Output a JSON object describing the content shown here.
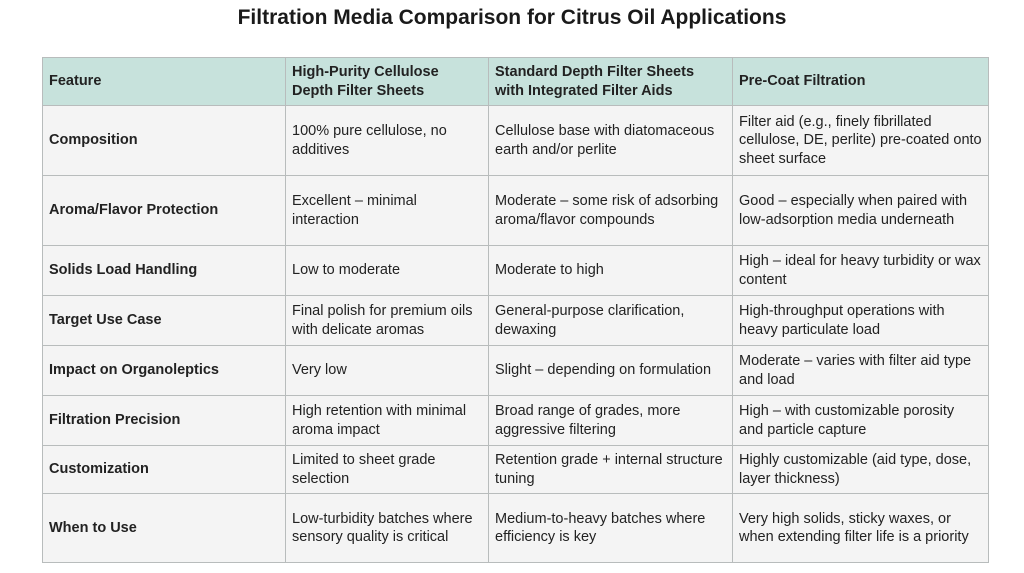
{
  "title": "Filtration Media Comparison for Citrus Oil Applications",
  "table": {
    "header": [
      "Feature",
      "High-Purity Cellulose Depth Filter Sheets",
      "Standard Depth Filter Sheets with Integrated Filter Aids",
      "Pre-Coat Filtration"
    ],
    "rows": [
      [
        "Composition",
        "100% pure cellulose, no additives",
        "Cellulose base with diatomaceous earth and/or perlite",
        "Filter aid (e.g., finely fibrillated cellulose, DE, perlite) pre-coated onto sheet surface"
      ],
      [
        "Aroma/Flavor Protection",
        "Excellent – minimal interaction",
        "Moderate – some risk of adsorbing aroma/flavor compounds",
        "Good – especially when paired with low-adsorption media underneath"
      ],
      [
        "Solids Load Handling",
        "Low to moderate",
        "Moderate to high",
        "High – ideal for heavy turbidity or wax content"
      ],
      [
        "Target Use Case",
        "Final polish for premium oils with delicate aromas",
        "General-purpose clarification, dewaxing",
        "High-throughput operations with heavy particulate load"
      ],
      [
        "Impact on Organoleptics",
        "Very low",
        "Slight – depending on formulation",
        "Moderate – varies with filter aid type and load"
      ],
      [
        "Filtration Precision",
        "High retention with minimal aroma impact",
        "Broad range of grades, more aggressive filtering",
        "High – with customizable porosity and particle capture"
      ],
      [
        "Customization",
        "Limited to sheet grade selection",
        "Retention grade + internal structure tuning",
        "Highly customizable (aid type, dose, layer thickness)"
      ],
      [
        "When to Use",
        "Low-turbidity batches where sensory quality is critical",
        "Medium-to-heavy batches where efficiency is key",
        "Very high solids, sticky waxes, or when extending filter life is a priority"
      ]
    ]
  }
}
